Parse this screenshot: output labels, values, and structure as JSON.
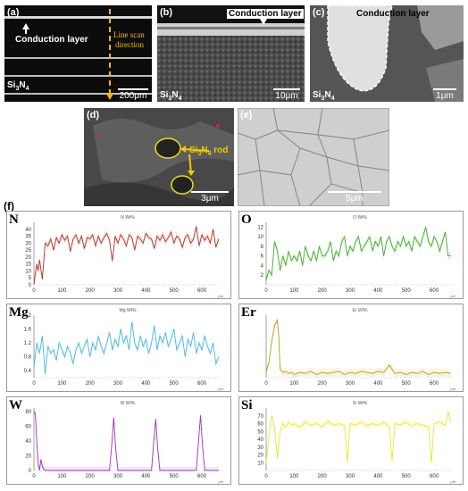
{
  "panels": {
    "a": {
      "tag": "(a)",
      "layer_label": "Conduction layer",
      "scan_label_1": "Line scan",
      "scan_label_2": "direction",
      "material": "Si3N4",
      "scale": "200μm"
    },
    "b": {
      "tag": "(b)",
      "layer_label": "Conduction layer",
      "material": "Si3N4",
      "scale": "10μm"
    },
    "c": {
      "tag": "(c)",
      "layer_label": "Conduction layer",
      "material": "Si3N4",
      "scale": "1μm"
    },
    "d": {
      "tag": "(d)",
      "rod_label": "Si3N4 rod",
      "scale": "3μm"
    },
    "e": {
      "tag": "(e)",
      "scale": "5μm"
    },
    "f": {
      "tag": "(f)"
    }
  },
  "colors": {
    "N": "#b5332a",
    "O": "#3fae2a",
    "Mg": "#4ab8e0",
    "Er": "#b8a016",
    "W": "#a030c0",
    "Si": "#e8e830"
  },
  "chart_data": [
    {
      "type": "line",
      "element": "N",
      "title": "N Wt%",
      "xunit": "μm",
      "xlim": [
        0,
        670
      ],
      "ylim": [
        0,
        45
      ],
      "xticks": [
        0,
        100,
        200,
        300,
        400,
        500,
        600
      ],
      "yticks": [
        0,
        5,
        10,
        15,
        20,
        25,
        30,
        35,
        40
      ],
      "x": [
        0,
        5,
        10,
        15,
        20,
        30,
        40,
        50,
        60,
        70,
        80,
        90,
        100,
        110,
        120,
        130,
        140,
        150,
        160,
        170,
        180,
        190,
        200,
        210,
        220,
        230,
        240,
        250,
        260,
        270,
        280,
        290,
        300,
        310,
        320,
        330,
        340,
        350,
        360,
        370,
        380,
        390,
        400,
        410,
        420,
        430,
        440,
        450,
        460,
        470,
        480,
        490,
        500,
        510,
        520,
        530,
        540,
        550,
        560,
        570,
        580,
        590,
        600,
        610,
        620,
        630,
        640,
        650,
        660
      ],
      "y": [
        0,
        8,
        15,
        10,
        18,
        4,
        30,
        28,
        33,
        25,
        34,
        30,
        36,
        32,
        35,
        24,
        33,
        36,
        30,
        35,
        26,
        34,
        33,
        36,
        28,
        35,
        30,
        34,
        37,
        32,
        17,
        35,
        30,
        36,
        33,
        28,
        36,
        34,
        25,
        35,
        33,
        30,
        37,
        34,
        33,
        26,
        35,
        32,
        36,
        31,
        34,
        38,
        30,
        35,
        33,
        27,
        34,
        36,
        30,
        33,
        42,
        28,
        36,
        32,
        35,
        30,
        40,
        27,
        33
      ]
    },
    {
      "type": "line",
      "element": "O",
      "title": "O Wt%",
      "xunit": "μm",
      "xlim": [
        0,
        670
      ],
      "ylim": [
        0,
        13
      ],
      "xticks": [
        0,
        100,
        200,
        300,
        400,
        500,
        600
      ],
      "yticks": [
        2,
        4,
        6,
        8,
        10,
        12
      ],
      "x": [
        0,
        10,
        20,
        30,
        40,
        50,
        60,
        70,
        80,
        90,
        100,
        110,
        120,
        130,
        140,
        150,
        160,
        170,
        180,
        190,
        200,
        210,
        220,
        230,
        240,
        250,
        260,
        270,
        280,
        290,
        300,
        310,
        320,
        330,
        340,
        350,
        360,
        370,
        380,
        390,
        400,
        410,
        420,
        430,
        440,
        450,
        460,
        470,
        480,
        490,
        500,
        510,
        520,
        530,
        540,
        550,
        560,
        570,
        580,
        590,
        600,
        610,
        620,
        630,
        640,
        650,
        660
      ],
      "y": [
        1,
        3,
        2,
        9,
        7,
        3,
        6,
        4,
        7,
        5,
        6,
        5,
        7,
        4,
        8,
        6,
        5,
        7,
        5,
        8,
        6,
        6,
        7,
        9,
        5,
        7,
        6,
        9,
        10,
        6,
        8,
        7,
        9,
        10,
        7,
        8,
        9,
        10,
        7,
        9,
        8,
        10,
        6,
        9,
        10,
        8,
        7,
        9,
        8,
        10,
        8,
        9,
        7,
        10,
        9,
        8,
        10,
        12,
        9,
        8,
        10,
        9,
        7,
        9,
        11,
        6,
        6
      ]
    },
    {
      "type": "line",
      "element": "Mg",
      "title": "Mg Wt%",
      "xunit": "μm",
      "xlim": [
        0,
        670
      ],
      "ylim": [
        0.2,
        2.0
      ],
      "xticks": [
        0,
        100,
        200,
        300,
        400,
        500,
        600
      ],
      "yticks": [
        0.4,
        0.8,
        1.2,
        1.6,
        2.0
      ],
      "x": [
        0,
        10,
        20,
        30,
        40,
        50,
        60,
        70,
        80,
        90,
        100,
        110,
        120,
        130,
        140,
        150,
        160,
        170,
        180,
        190,
        200,
        210,
        220,
        230,
        240,
        250,
        260,
        270,
        280,
        290,
        300,
        310,
        320,
        330,
        340,
        350,
        360,
        370,
        380,
        390,
        400,
        410,
        420,
        430,
        440,
        450,
        460,
        470,
        480,
        490,
        500,
        510,
        520,
        530,
        540,
        550,
        560,
        570,
        580,
        590,
        600,
        610,
        620,
        630,
        640,
        650,
        660
      ],
      "y": [
        0.5,
        1.2,
        0.9,
        1.4,
        0.3,
        1.1,
        0.9,
        1.0,
        0.7,
        1.2,
        1.0,
        0.8,
        1.1,
        0.9,
        0.6,
        1.0,
        1.2,
        0.9,
        1.1,
        1.3,
        0.8,
        1.2,
        1.0,
        1.4,
        1.1,
        0.9,
        1.2,
        1.5,
        1.0,
        1.3,
        1.1,
        1.6,
        1.2,
        1.4,
        1.0,
        1.8,
        1.2,
        1.0,
        1.4,
        1.1,
        1.3,
        0.9,
        1.2,
        1.7,
        1.0,
        1.4,
        1.2,
        1.5,
        1.1,
        1.3,
        1.6,
        1.0,
        1.2,
        1.4,
        0.8,
        1.3,
        1.1,
        1.5,
        0.9,
        1.2,
        1.0,
        1.4,
        1.1,
        0.9,
        1.2,
        0.6,
        0.8
      ]
    },
    {
      "type": "line",
      "element": "Er",
      "title": "Er Wt%",
      "xunit": "μm",
      "xlim": [
        0,
        670
      ],
      "ylim": [
        0,
        60
      ],
      "xticks": [
        0,
        100,
        200,
        300,
        400,
        500,
        600
      ],
      "yticks": [],
      "x": [
        0,
        10,
        20,
        30,
        40,
        45,
        50,
        60,
        70,
        80,
        90,
        100,
        120,
        140,
        160,
        180,
        200,
        220,
        240,
        260,
        280,
        300,
        320,
        340,
        360,
        380,
        400,
        420,
        440,
        460,
        480,
        500,
        520,
        540,
        560,
        580,
        600,
        620,
        640,
        660
      ],
      "y": [
        5,
        15,
        35,
        50,
        55,
        40,
        8,
        5,
        6,
        4,
        5,
        3,
        5,
        4,
        6,
        3,
        5,
        4,
        5,
        6,
        3,
        5,
        4,
        6,
        5,
        4,
        6,
        5,
        12,
        4,
        5,
        3,
        5,
        4,
        6,
        3,
        5,
        4,
        5,
        4
      ]
    },
    {
      "type": "line",
      "element": "W",
      "title": "W Wt%",
      "xunit": "μm",
      "xlim": [
        0,
        670
      ],
      "ylim": [
        0,
        85
      ],
      "xticks": [
        0,
        100,
        200,
        300,
        400,
        500,
        600
      ],
      "yticks": [
        0,
        20,
        40,
        60,
        80
      ],
      "x": [
        0,
        5,
        10,
        15,
        20,
        25,
        30,
        40,
        50,
        60,
        100,
        200,
        270,
        278,
        285,
        292,
        300,
        350,
        420,
        427,
        435,
        442,
        450,
        500,
        580,
        588,
        595,
        602,
        610,
        660
      ],
      "y": [
        80,
        78,
        40,
        10,
        0,
        15,
        5,
        0,
        0,
        0,
        0,
        0,
        0,
        35,
        72,
        30,
        0,
        0,
        0,
        35,
        70,
        30,
        0,
        0,
        0,
        40,
        75,
        35,
        0,
        0
      ]
    },
    {
      "type": "line",
      "element": "Si",
      "title": "Si Wt%",
      "xunit": "μm",
      "xlim": [
        0,
        670
      ],
      "ylim": [
        0,
        80
      ],
      "xticks": [
        0,
        100,
        200,
        300,
        400,
        500,
        600
      ],
      "yticks": [
        10,
        20,
        30,
        40,
        50,
        60,
        70
      ],
      "x": [
        0,
        10,
        20,
        30,
        40,
        50,
        60,
        70,
        80,
        90,
        100,
        120,
        140,
        160,
        180,
        200,
        220,
        240,
        260,
        280,
        290,
        300,
        320,
        340,
        360,
        380,
        400,
        420,
        440,
        450,
        460,
        480,
        500,
        520,
        540,
        560,
        580,
        590,
        600,
        620,
        640,
        650,
        660
      ],
      "y": [
        10,
        45,
        70,
        55,
        15,
        50,
        60,
        55,
        62,
        58,
        60,
        55,
        62,
        58,
        60,
        56,
        63,
        58,
        60,
        57,
        10,
        60,
        58,
        62,
        57,
        60,
        58,
        62,
        56,
        12,
        60,
        58,
        62,
        57,
        60,
        58,
        56,
        10,
        60,
        62,
        58,
        75,
        62
      ]
    }
  ]
}
